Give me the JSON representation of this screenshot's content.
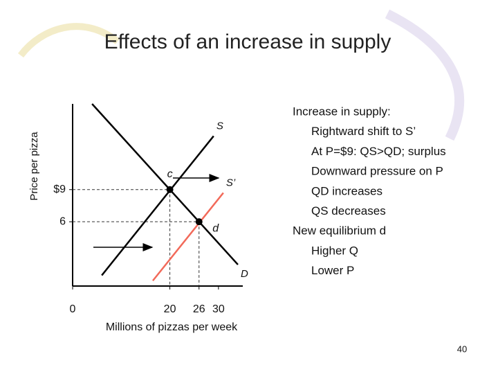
{
  "chart_data": {
    "type": "line",
    "title": "Effects of an increase in supply",
    "xlabel": "Millions of pizzas per week",
    "ylabel": "Price per pizza",
    "xlim": [
      0,
      35
    ],
    "ylim": [
      0,
      17
    ],
    "xticks": [
      0,
      20,
      26,
      30
    ],
    "yticks": [
      {
        "value": 9,
        "label": "$9"
      },
      6
    ],
    "grid": false,
    "series": [
      {
        "name": "S",
        "color": "#000000",
        "x": [
          6,
          29
        ],
        "values": [
          1,
          14
        ]
      },
      {
        "name": "S’",
        "color": "#f26a5a",
        "x": [
          16.5,
          31
        ],
        "values": [
          0.5,
          8.7
        ]
      },
      {
        "name": "D",
        "color": "#000000",
        "x": [
          4,
          34
        ],
        "values": [
          17,
          2
        ]
      }
    ],
    "points": [
      {
        "label": "c",
        "x": 20,
        "y": 9
      },
      {
        "label": "d",
        "x": 26,
        "y": 6
      }
    ],
    "notes": [
      "Increase in supply:",
      "Rightward shift to S’",
      "At P=$9: QS>QD; surplus",
      "Downward pressure on P",
      "QD increases",
      "QS decreases",
      "New equilibrium d",
      "Higher Q",
      "Lower P"
    ]
  },
  "page_number": "40"
}
